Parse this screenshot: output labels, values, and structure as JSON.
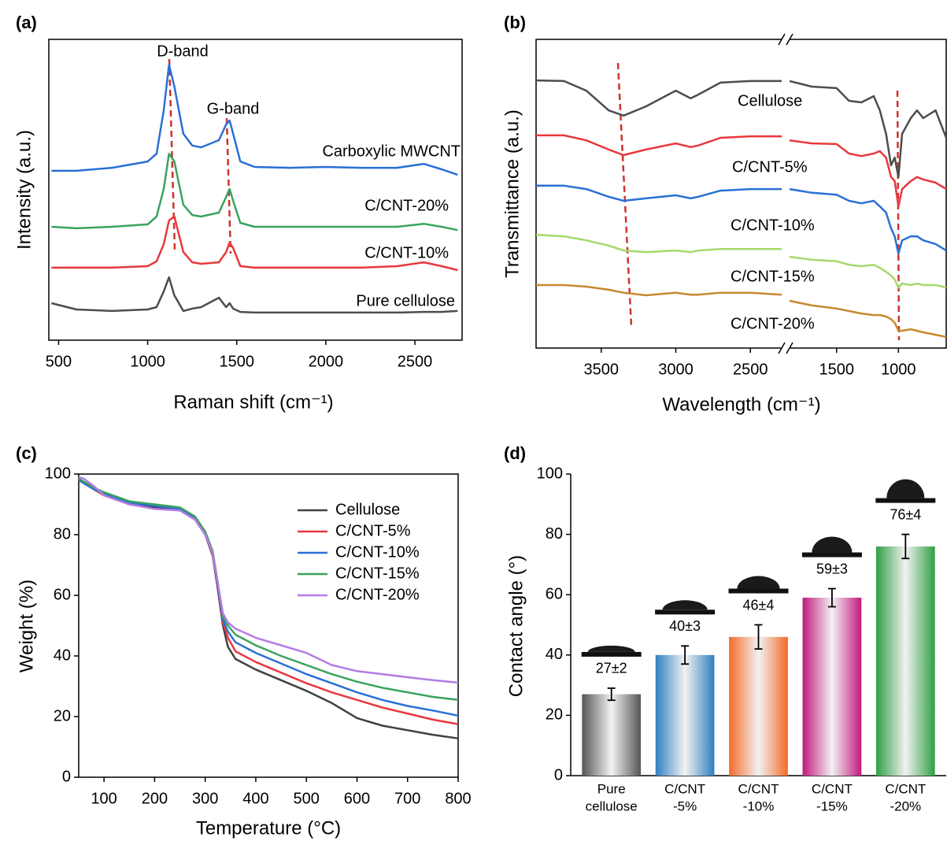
{
  "chart_data": [
    {
      "type": "line",
      "panel_label": "(a)",
      "xlabel": "Raman shift (cm⁻¹)",
      "ylabel": "Intensity (a.u.)",
      "annotations": [
        "D-band",
        "G-band"
      ],
      "x": [
        460,
        600,
        800,
        1000,
        1050,
        1090,
        1120,
        1150,
        1200,
        1250,
        1300,
        1400,
        1440,
        1460,
        1480,
        1520,
        1600,
        1800,
        2000,
        2200,
        2400,
        2550,
        2650,
        2740
      ],
      "xlim": [
        445,
        2765
      ],
      "xticks": [
        500,
        1000,
        1500,
        2000,
        2500
      ],
      "ylim": [
        0,
        100
      ],
      "series": [
        {
          "name": "Carboxylic MWCNT",
          "color": "#2a6fd6",
          "values": [
            56.3,
            56.3,
            57.3,
            59.4,
            62.0,
            76.4,
            91.6,
            84.3,
            68.6,
            64.7,
            64.1,
            66.5,
            71.7,
            73.0,
            68.6,
            59.4,
            57.6,
            57.3,
            57.6,
            57.3,
            57.3,
            58.6,
            56.8,
            55.0
          ]
        },
        {
          "name": "C/CNT-20%",
          "color": "#3aa35f",
          "values": [
            37.7,
            37.2,
            37.7,
            38.5,
            41.1,
            50.3,
            62.0,
            59.4,
            45.0,
            41.6,
            41.1,
            42.4,
            47.6,
            50.3,
            46.3,
            39.0,
            37.7,
            37.7,
            37.7,
            37.7,
            37.7,
            38.7,
            37.7,
            36.6
          ]
        },
        {
          "name": "C/CNT-10%",
          "color": "#e8383d",
          "values": [
            24.1,
            24.1,
            24.1,
            24.6,
            26.2,
            31.9,
            39.8,
            41.1,
            29.3,
            25.9,
            25.4,
            25.9,
            29.3,
            32.5,
            30.6,
            24.6,
            24.1,
            24.1,
            24.1,
            24.1,
            24.6,
            25.9,
            24.6,
            23.3
          ]
        },
        {
          "name": "Pure cellulose",
          "color": "#4d4d4d",
          "values": [
            12.3,
            10.2,
            9.7,
            10.2,
            11.0,
            16.2,
            20.9,
            14.9,
            9.7,
            10.5,
            11.0,
            14.1,
            11.0,
            12.3,
            10.5,
            9.4,
            9.2,
            9.2,
            9.2,
            9.2,
            9.2,
            9.4,
            9.4,
            9.7
          ]
        }
      ]
    },
    {
      "type": "line",
      "panel_label": "(b)",
      "xlabel": "Wavelength (cm⁻¹)",
      "ylabel": "Transmittance (a.u.)",
      "x": [
        3937,
        3750,
        3600,
        3450,
        3350,
        3200,
        3000,
        2900,
        2850,
        2700,
        2500,
        2290,
        1880,
        1700,
        1500,
        1400,
        1300,
        1200,
        1150,
        1100,
        1060,
        1030,
        1000,
        970,
        900,
        850,
        800,
        700,
        614
      ],
      "xlim": [
        3937,
        614
      ],
      "xbreak": [
        2290,
        1880
      ],
      "xticks": [
        3500,
        3000,
        2500,
        1500,
        1000
      ],
      "ylim": [
        0,
        100
      ],
      "series": [
        {
          "name": "Cellulose",
          "color": "#4d4d4d",
          "values": [
            86.7,
            86.5,
            83.4,
            77.0,
            75.3,
            78.3,
            83.4,
            80.9,
            82.1,
            86.0,
            86.5,
            86.5,
            86.5,
            84.7,
            84.2,
            80.1,
            79.6,
            81.6,
            77.0,
            69.4,
            59.2,
            61.7,
            55.4,
            69.4,
            74.5,
            77.0,
            74.5,
            77.0,
            68.1
          ]
        },
        {
          "name": "C/CNT-5%",
          "color": "#e8383d",
          "values": [
            68.9,
            68.9,
            67.3,
            64.3,
            62.5,
            64.3,
            66.3,
            65.1,
            65.6,
            68.1,
            68.6,
            68.6,
            67.3,
            66.3,
            66.1,
            63.0,
            62.2,
            63.0,
            63.8,
            61.7,
            55.4,
            54.1,
            45.9,
            51.5,
            54.1,
            55.4,
            54.6,
            53.6,
            51.5
          ]
        },
        {
          "name": "C/CNT-10%",
          "color": "#2a6fd6",
          "values": [
            52.6,
            52.6,
            51.5,
            49.0,
            47.7,
            48.5,
            49.5,
            48.5,
            49.0,
            51.0,
            51.5,
            51.5,
            51.5,
            50.3,
            49.7,
            47.7,
            46.9,
            47.7,
            45.9,
            43.9,
            38.8,
            36.2,
            30.6,
            34.9,
            36.2,
            36.2,
            34.9,
            33.7,
            31.6
          ]
        },
        {
          "name": "C/CNT-15%",
          "color": "#a6d96a",
          "values": [
            36.7,
            36.2,
            34.9,
            33.2,
            31.6,
            31.1,
            31.6,
            31.1,
            31.6,
            32.1,
            32.1,
            32.1,
            29.6,
            28.6,
            28.1,
            27.0,
            26.5,
            27.0,
            26.0,
            24.7,
            23.5,
            22.2,
            19.6,
            20.9,
            20.4,
            20.9,
            20.4,
            20.4,
            19.6
          ]
        },
        {
          "name": "C/CNT-20%",
          "color": "#c8882e",
          "values": [
            20.4,
            20.4,
            19.9,
            18.9,
            17.9,
            17.1,
            17.9,
            17.3,
            17.3,
            17.9,
            17.9,
            17.3,
            15.3,
            13.8,
            12.8,
            12.0,
            11.2,
            10.7,
            10.7,
            10.2,
            9.4,
            8.2,
            5.6,
            5.6,
            6.1,
            5.6,
            5.1,
            4.3,
            3.6
          ]
        }
      ]
    },
    {
      "type": "line",
      "panel_label": "(c)",
      "xlabel": "Temperature (°C)",
      "ylabel": "Weight (%)",
      "legend": "upper right",
      "x": [
        50,
        60,
        80,
        100,
        150,
        200,
        250,
        280,
        300,
        315,
        325,
        335,
        345,
        360,
        400,
        450,
        500,
        550,
        600,
        650,
        700,
        750,
        800
      ],
      "xlim": [
        50,
        800
      ],
      "xticks": [
        100,
        200,
        300,
        400,
        500,
        600,
        700,
        800
      ],
      "ylim": [
        0,
        100
      ],
      "yticks": [
        0,
        20,
        40,
        60,
        80,
        100
      ],
      "series": [
        {
          "name": "Cellulose",
          "color": "#404040",
          "values": [
            98,
            97,
            95,
            93,
            90,
            89,
            88,
            85,
            80,
            73,
            62,
            50,
            43,
            39,
            35.5,
            32,
            28.5,
            24.5,
            19.5,
            17,
            15.5,
            14,
            12.8
          ]
        },
        {
          "name": "C/CNT-5%",
          "color": "#e8383d",
          "values": [
            98,
            97,
            95,
            93,
            90.5,
            89.5,
            88.5,
            85.5,
            80.5,
            73.5,
            63,
            51,
            46,
            41.5,
            38,
            34.5,
            31,
            28,
            25.5,
            23,
            21,
            19,
            17.5
          ]
        },
        {
          "name": "C/CNT-10%",
          "color": "#2a6fd6",
          "values": [
            98,
            97,
            95,
            93.5,
            90.5,
            89.5,
            88.5,
            85.5,
            80.5,
            74,
            63.5,
            52,
            48,
            44.5,
            41,
            37.5,
            34,
            31,
            28,
            25.5,
            23.5,
            22,
            20.3
          ]
        },
        {
          "name": "C/CNT-15%",
          "color": "#3aa35f",
          "values": [
            98.5,
            97.5,
            95.5,
            94,
            91,
            90,
            89,
            86,
            81,
            74.5,
            64,
            53,
            50,
            47,
            43.5,
            40,
            37,
            34,
            31.5,
            29.5,
            28,
            26.5,
            25.5
          ]
        },
        {
          "name": "C/CNT-20%",
          "color": "#b57be8",
          "values": [
            99,
            98.5,
            96,
            93,
            90,
            88.5,
            88,
            85,
            80,
            74,
            64,
            54,
            51,
            49,
            46,
            43.5,
            41,
            37,
            35,
            34,
            33,
            32,
            31.2
          ]
        }
      ]
    },
    {
      "type": "bar",
      "panel_label": "(d)",
      "ylabel": "Contact angle (°)",
      "categories": [
        [
          "Pure",
          "cellulose"
        ],
        [
          "C/CNT",
          "-5%"
        ],
        [
          "C/CNT",
          "-10%"
        ],
        [
          "C/CNT",
          "-15%"
        ],
        [
          "C/CNT",
          "-20%"
        ]
      ],
      "values": [
        27,
        40,
        46,
        59,
        76
      ],
      "errors": [
        2,
        3,
        4,
        3,
        4
      ],
      "value_labels": [
        "27±2",
        "40±3",
        "46±4",
        "59±3",
        "76±4"
      ],
      "colors": [
        "#555555",
        "#2f7fc1",
        "#f26b2a",
        "#c2187f",
        "#2ea043"
      ],
      "ylim": [
        0,
        100
      ],
      "yticks": [
        0,
        20,
        40,
        60,
        80,
        100
      ]
    }
  ]
}
